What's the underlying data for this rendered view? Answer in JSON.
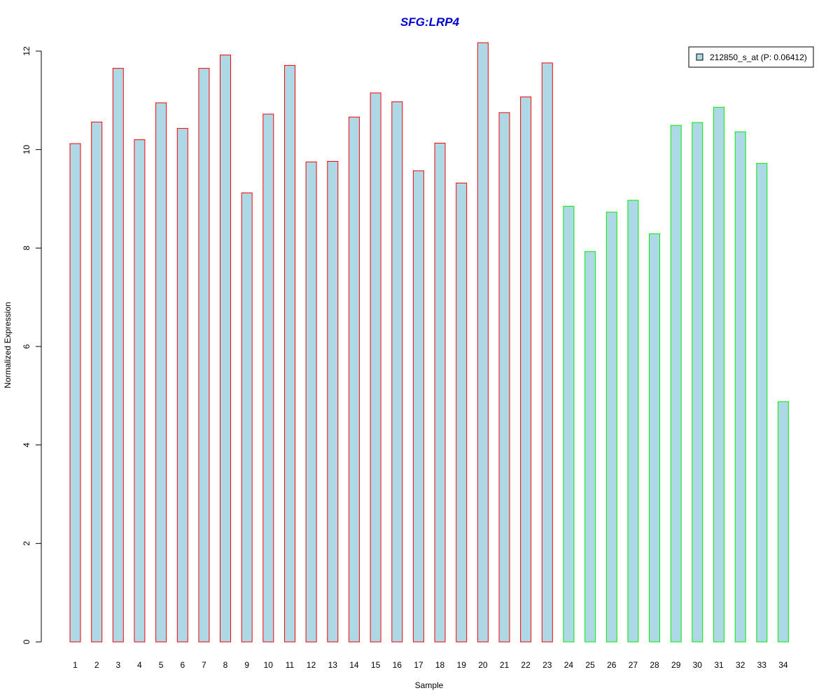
{
  "chart_data": {
    "type": "bar",
    "title": "SFG:LRP4",
    "xlabel": "Sample",
    "ylabel": "Normalized Expression",
    "ylim": [
      0,
      12.2
    ],
    "yticks": [
      0,
      2,
      4,
      6,
      8,
      10,
      12
    ],
    "grid": false,
    "legend_position": "top-right",
    "categories": [
      "1",
      "2",
      "3",
      "4",
      "5",
      "6",
      "7",
      "8",
      "9",
      "10",
      "11",
      "12",
      "13",
      "14",
      "15",
      "16",
      "17",
      "18",
      "19",
      "20",
      "21",
      "22",
      "23",
      "24",
      "25",
      "26",
      "27",
      "28",
      "29",
      "30",
      "31",
      "32",
      "33",
      "34"
    ],
    "series": [
      {
        "name": "212850_s_at (P: 0.06412)",
        "fill": "#add8e6",
        "values": [
          10.12,
          10.56,
          11.65,
          10.2,
          10.95,
          10.43,
          11.65,
          11.92,
          9.12,
          10.72,
          11.71,
          9.75,
          9.76,
          10.66,
          11.15,
          10.97,
          9.57,
          10.13,
          9.32,
          12.17,
          10.75,
          11.07,
          11.76,
          8.85,
          7.93,
          8.73,
          8.97,
          8.29,
          10.49,
          10.55,
          10.86,
          10.36,
          9.72,
          4.88
        ]
      }
    ],
    "group_colors": [
      "#ff0000",
      "#ff0000",
      "#ff0000",
      "#ff0000",
      "#ff0000",
      "#ff0000",
      "#ff0000",
      "#ff0000",
      "#ff0000",
      "#ff0000",
      "#ff0000",
      "#ff0000",
      "#ff0000",
      "#ff0000",
      "#ff0000",
      "#ff0000",
      "#ff0000",
      "#ff0000",
      "#ff0000",
      "#ff0000",
      "#ff0000",
      "#ff0000",
      "#ff0000",
      "#00ee00",
      "#00ee00",
      "#00ee00",
      "#00ee00",
      "#00ee00",
      "#00ee00",
      "#00ee00",
      "#00ee00",
      "#00ee00",
      "#00ee00",
      "#00ee00"
    ]
  }
}
